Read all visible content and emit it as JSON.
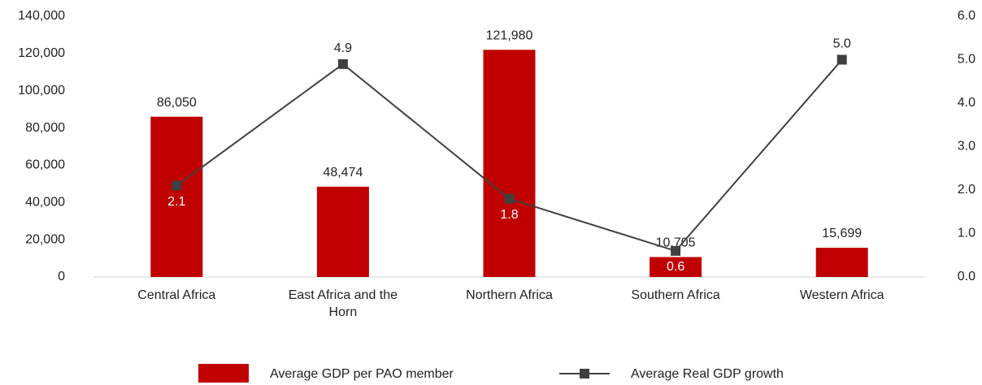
{
  "chart_data": {
    "type": "bar",
    "categories": [
      "Central Africa",
      "East Africa and the Horn",
      "Northern Africa",
      "Southern Africa",
      "Western Africa"
    ],
    "series": [
      {
        "name": "Average GDP per PAO member",
        "color": "#c00000",
        "type": "bar",
        "values": [
          86050,
          48474,
          121980,
          10705,
          15699
        ],
        "value_labels": [
          "86,050",
          "48,474",
          "121,980",
          "10,705",
          "15,699"
        ]
      },
      {
        "name": "Average Real GDP growth",
        "color": "#404040",
        "type": "line",
        "axis": "y2",
        "values": [
          2.1,
          4.9,
          1.8,
          0.6,
          5
        ],
        "value_labels": [
          "2.1",
          "4.9",
          "1.8",
          "0.6",
          "5.0"
        ]
      }
    ],
    "ylim": [
      0,
      140000
    ],
    "yticks": [
      0,
      {
        "value": 20000,
        "label": "20,000"
      },
      {
        "value": 40000,
        "label": "40,000"
      },
      {
        "value": 60000,
        "label": "60,000"
      },
      {
        "value": 80000,
        "label": "80,000"
      },
      {
        "value": 100000,
        "label": "100,000"
      },
      {
        "value": 120000,
        "label": "120,000"
      },
      {
        "value": 140000,
        "label": "140,000"
      }
    ],
    "y2lim": [
      0,
      6
    ],
    "y2ticks": [
      {
        "value": 0,
        "label": "0.0"
      },
      {
        "value": 1,
        "label": "1.0"
      },
      {
        "value": 2,
        "label": "2.0"
      },
      {
        "value": 3,
        "label": "3.0"
      },
      {
        "value": 4,
        "label": "4.0"
      },
      {
        "value": 5,
        "label": "5.0"
      },
      {
        "value": 6,
        "label": "6.0"
      }
    ],
    "legend": "bottom"
  }
}
